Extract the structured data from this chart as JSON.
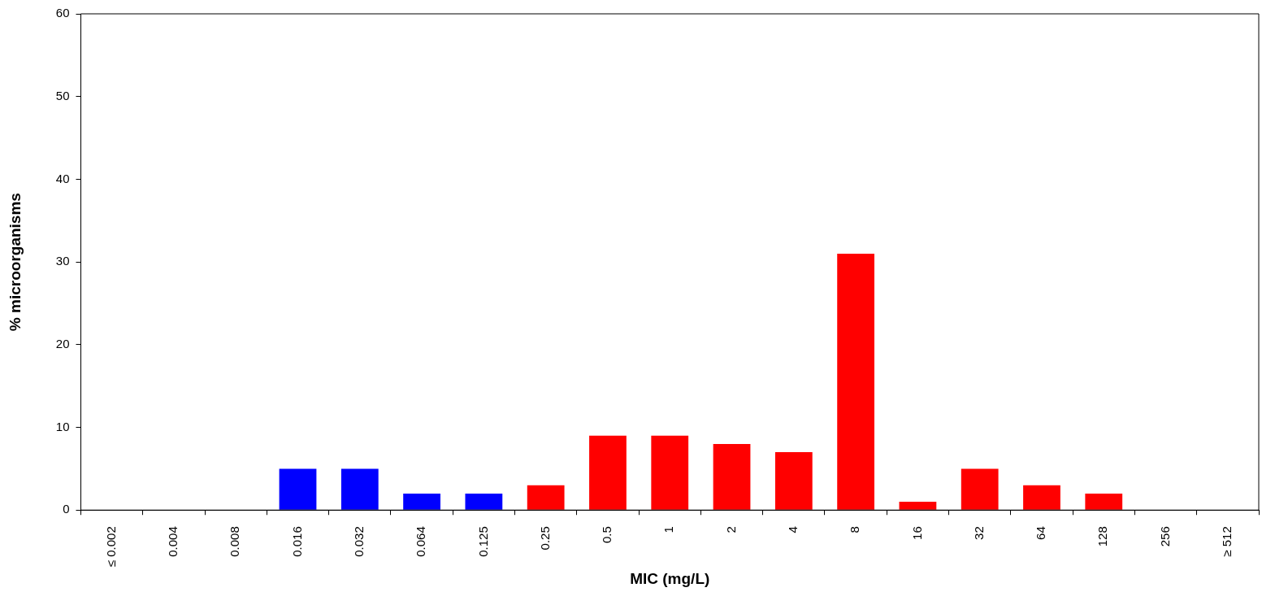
{
  "chart_data": {
    "type": "bar",
    "xlabel": "MIC (mg/L)",
    "ylabel": "% microorganisms",
    "categories": [
      "≤ 0.002",
      "0.004",
      "0.008",
      "0.016",
      "0.032",
      "0.064",
      "0.125",
      "0.25",
      "0.5",
      "1",
      "2",
      "4",
      "8",
      "16",
      "32",
      "64",
      "128",
      "256",
      "≥ 512"
    ],
    "values": [
      0,
      0,
      0,
      5,
      5,
      2,
      2,
      3,
      9,
      9,
      8,
      7,
      31,
      1,
      5,
      3,
      2,
      0,
      0
    ],
    "colors": [
      "#ff0000",
      "#ff0000",
      "#ff0000",
      "#0000ff",
      "#0000ff",
      "#0000ff",
      "#0000ff",
      "#ff0000",
      "#ff0000",
      "#ff0000",
      "#ff0000",
      "#ff0000",
      "#ff0000",
      "#ff0000",
      "#ff0000",
      "#ff0000",
      "#ff0000",
      "#ff0000",
      "#ff0000"
    ],
    "ylim": [
      0,
      60
    ],
    "yticks": [
      0,
      10,
      20,
      30,
      40,
      50,
      60
    ],
    "grid": false,
    "legend": false
  }
}
